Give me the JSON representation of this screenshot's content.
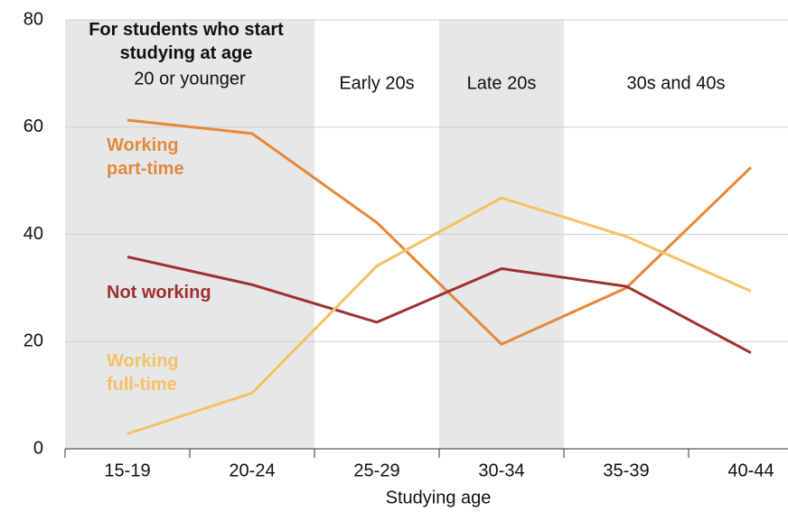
{
  "chart_data": {
    "type": "line",
    "categories": [
      "15-19",
      "20-24",
      "25-29",
      "30-34",
      "35-39",
      "40-44"
    ],
    "series": [
      {
        "name": "Working part-time",
        "color": "#e6883a",
        "values": [
          61.3,
          58.8,
          42.2,
          19.5,
          30.0,
          52.5
        ]
      },
      {
        "name": "Not working",
        "color": "#a0302f",
        "values": [
          35.8,
          30.6,
          23.6,
          33.6,
          30.3,
          17.9
        ]
      },
      {
        "name": "Working full-time",
        "color": "#f5c163",
        "values": [
          2.8,
          10.4,
          34.1,
          46.8,
          39.6,
          29.4
        ]
      }
    ],
    "ylim": [
      0,
      80
    ],
    "yticks": [
      0,
      20,
      40,
      60,
      80
    ],
    "grid": true,
    "xlabel": "Studying age",
    "annotation": "For students who start studying at age",
    "groups": [
      {
        "label": "20 or younger",
        "categories": [
          "15-19",
          "20-24"
        ],
        "shaded": true
      },
      {
        "label": "Early 20s",
        "categories": [
          "25-29"
        ],
        "shaded": false
      },
      {
        "label": "Late 20s",
        "categories": [
          "30-34"
        ],
        "shaded": true
      },
      {
        "label": "30s and 40s",
        "categories": [
          "35-39",
          "40-44"
        ],
        "shaded": false
      }
    ]
  }
}
